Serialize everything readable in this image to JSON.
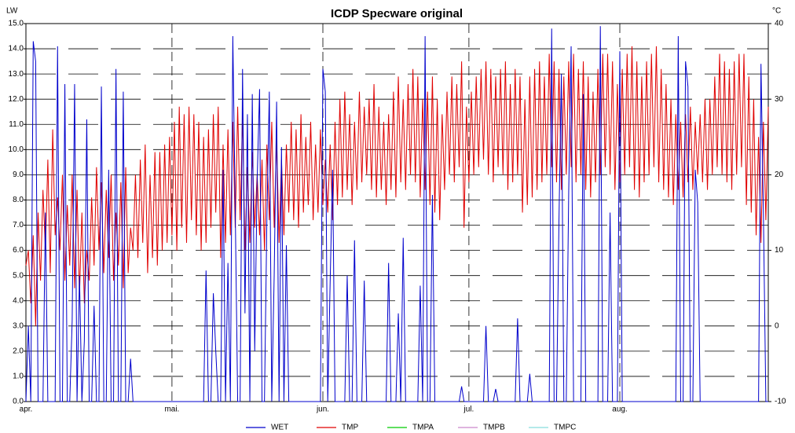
{
  "chart_data": {
    "type": "line",
    "title": "ICDP Specware original",
    "ylabel": "LW",
    "y2label": "°C",
    "categories": [
      "apr.",
      null,
      null,
      null,
      null,
      null,
      null,
      null,
      null,
      null,
      null,
      null,
      null,
      null,
      null,
      null,
      null,
      null,
      null,
      null,
      null,
      null,
      null,
      null,
      null,
      null,
      null,
      null,
      null,
      null,
      null,
      null,
      null,
      null,
      null,
      null,
      null,
      null,
      null,
      null,
      null,
      null,
      null,
      null,
      null,
      null,
      null,
      null,
      null,
      null,
      null,
      null,
      null,
      null,
      null,
      null,
      null,
      null,
      null,
      null,
      "mai.",
      null,
      null,
      null,
      null,
      null,
      null,
      null,
      null,
      null,
      null,
      null,
      null,
      null,
      null,
      null,
      null,
      null,
      null,
      null,
      null,
      null,
      null,
      null,
      null,
      null,
      null,
      null,
      null,
      null,
      null,
      null,
      null,
      null,
      null,
      null,
      null,
      null,
      null,
      null,
      null,
      null,
      null,
      null,
      null,
      null,
      null,
      null,
      null,
      null,
      null,
      null,
      null,
      null,
      null,
      null,
      null,
      null,
      null,
      null,
      null,
      null,
      "jun.",
      null,
      null,
      null,
      null,
      null,
      null,
      null,
      null,
      null,
      null,
      null,
      null,
      null,
      null,
      null,
      null,
      null,
      null,
      null,
      null,
      null,
      null,
      null,
      null,
      null,
      null,
      null,
      null,
      null,
      null,
      null,
      null,
      null,
      null,
      null,
      null,
      null,
      null,
      null,
      null,
      null,
      null,
      null,
      null,
      null,
      null,
      null,
      null,
      null,
      null,
      null,
      null,
      null,
      null,
      null,
      null,
      null,
      null,
      null,
      "jul.",
      null,
      null,
      null,
      null,
      null,
      null,
      null,
      null,
      null,
      null,
      null,
      null,
      null,
      null,
      null,
      null,
      null,
      null,
      null,
      null,
      null,
      null,
      null,
      null,
      null,
      null,
      null,
      null,
      null,
      null,
      null,
      null,
      null,
      null,
      null,
      null,
      null,
      null,
      null,
      null,
      null,
      null,
      null,
      null,
      null,
      null,
      null,
      null,
      null,
      null,
      null,
      null,
      null,
      null,
      null,
      null,
      null,
      null,
      null,
      null,
      null,
      "aug.",
      null,
      null,
      null,
      null,
      null,
      null,
      null,
      null,
      null,
      null,
      null,
      null,
      null,
      null,
      null,
      null,
      null,
      null,
      null,
      null,
      null,
      null,
      null,
      null,
      null,
      null,
      null,
      null,
      null,
      null,
      null,
      null,
      null,
      null,
      null,
      null,
      null,
      null,
      null,
      null,
      null,
      null,
      null,
      null,
      null,
      null,
      null,
      null,
      null,
      null,
      null,
      null,
      null,
      null,
      null,
      null,
      null,
      null,
      null,
      null,
      null
    ],
    "series": [
      {
        "name": "WET",
        "color": "#0000cc",
        "values": [
          0,
          3,
          0,
          14.3,
          13.5,
          0,
          0,
          0,
          7.5,
          0,
          0,
          0,
          0,
          14.1,
          0,
          0,
          12.6,
          0,
          0,
          3.2,
          12.6,
          0,
          5,
          0,
          2.4,
          11.2,
          0,
          0,
          3.8,
          0,
          0,
          12.5,
          0,
          0,
          9.2,
          0,
          0,
          13.2,
          0,
          0,
          12.3,
          0,
          0,
          1.7,
          0,
          0,
          0,
          0,
          0,
          0,
          0,
          0,
          0,
          0,
          0,
          0,
          0,
          0,
          0,
          0,
          0,
          0,
          0,
          0,
          0,
          0,
          0,
          0,
          0,
          0,
          0,
          0,
          0,
          0,
          5.2,
          0,
          0,
          4.3,
          2,
          0,
          0,
          9.2,
          0,
          5.5,
          0,
          14.5,
          7.6,
          0,
          0,
          13.2,
          3.5,
          11.4,
          0,
          12.2,
          2,
          8.8,
          12.4,
          0,
          0,
          7.3,
          12.3,
          0,
          5,
          11.9,
          0,
          10.1,
          0,
          6.2,
          0,
          0,
          0,
          0,
          0,
          0,
          0,
          0,
          0,
          0,
          0,
          0,
          0,
          0,
          13.2,
          12.3,
          0,
          4.8,
          9.2,
          0,
          0,
          0,
          0,
          0,
          5,
          0,
          0,
          6.4,
          0,
          0,
          0,
          4.8,
          0,
          0,
          0,
          0,
          0,
          0,
          0,
          0,
          0,
          5.5,
          0,
          0,
          0,
          3.5,
          0,
          6.5,
          0,
          0,
          0,
          0,
          0,
          0,
          4.6,
          0,
          14.5,
          0,
          0,
          8.2,
          0,
          0,
          0,
          0,
          0,
          0,
          0,
          0,
          0,
          0,
          0,
          0.6,
          0,
          0,
          0,
          0,
          0,
          0,
          0,
          0,
          0,
          3,
          0,
          0,
          0,
          0.5,
          0,
          0,
          0,
          0,
          0,
          0,
          0,
          0,
          3.3,
          0,
          0,
          0,
          0,
          1.1,
          0,
          0,
          0,
          0,
          0,
          0,
          0,
          0,
          14.8,
          0,
          0,
          7.2,
          13,
          0,
          0,
          8.3,
          14.1,
          0,
          0,
          0,
          0,
          12.2,
          0,
          0,
          0,
          0,
          0,
          0,
          14.9,
          0,
          0,
          0,
          7.5,
          0,
          0,
          0,
          13.9,
          0,
          0,
          0,
          0,
          0,
          0,
          0,
          0,
          0,
          0,
          0,
          0,
          0,
          0,
          0,
          0,
          0,
          0,
          0,
          0,
          0,
          0,
          0,
          14.5,
          0,
          0,
          13.5,
          12.5,
          0,
          0,
          9.2,
          7.9,
          0,
          0,
          0,
          0,
          0,
          0,
          0,
          0,
          0,
          0,
          0,
          0,
          0,
          0,
          0,
          0,
          0,
          0,
          0,
          0,
          0,
          0,
          0,
          0,
          0,
          13.4,
          7.4,
          0,
          0
        ]
      },
      {
        "name": "TMP",
        "color": "#e00000",
        "axis": "y2",
        "values": [
          8,
          10,
          3,
          12,
          0,
          15,
          6,
          18,
          10,
          22,
          7,
          26,
          12,
          17,
          10,
          20,
          6,
          16,
          8,
          20,
          5,
          18,
          4,
          15,
          3,
          10,
          6,
          17,
          8,
          21,
          10,
          19,
          7,
          18,
          9,
          20,
          6,
          15,
          8,
          19,
          5,
          21,
          7,
          13,
          10,
          20,
          9,
          22,
          11,
          24,
          7,
          20,
          9,
          23,
          8,
          23,
          10,
          24,
          11,
          25,
          12,
          27,
          10,
          29,
          13,
          28,
          11,
          29,
          14,
          28,
          12,
          27,
          10,
          25,
          11,
          26,
          13,
          28,
          15,
          29,
          9,
          24,
          11,
          26,
          12,
          27,
          13,
          29,
          14,
          28,
          10,
          21,
          11,
          23,
          13,
          20,
          12,
          22,
          10,
          24,
          14,
          27,
          13,
          25,
          11,
          22,
          12,
          24,
          15,
          27,
          14,
          26,
          13,
          28,
          15,
          25,
          16,
          27,
          14,
          24,
          15,
          26,
          16,
          22,
          15,
          24,
          14,
          27,
          16,
          30,
          17,
          31,
          18,
          28,
          16,
          27,
          18,
          31,
          19,
          29,
          20,
          30,
          18,
          32,
          17,
          29,
          18,
          27,
          16,
          28,
          18,
          31,
          17,
          33,
          19,
          30,
          18,
          32,
          20,
          34,
          19,
          33,
          17,
          30,
          18,
          31,
          16,
          33,
          15,
          30,
          14,
          28,
          18,
          31,
          20,
          33,
          19,
          32,
          21,
          35,
          13,
          29,
          19,
          31,
          20,
          33,
          21,
          34,
          22,
          35,
          20,
          34,
          19,
          33,
          21,
          34,
          20,
          35,
          18,
          32,
          19,
          34,
          20,
          33,
          15,
          30,
          16,
          33,
          17,
          34,
          18,
          35,
          19,
          33,
          20,
          36,
          21,
          35,
          19,
          34,
          18,
          33,
          20,
          35,
          21,
          36,
          19,
          34,
          20,
          35,
          18,
          33,
          17,
          31,
          19,
          34,
          20,
          36,
          21,
          36,
          20,
          35,
          18,
          32,
          19,
          34,
          20,
          36,
          21,
          37,
          18,
          35,
          17,
          33,
          19,
          35,
          20,
          36,
          21,
          37,
          19,
          34,
          18,
          32,
          17,
          30,
          16,
          28,
          18,
          27,
          17,
          28,
          19,
          29,
          18,
          27,
          20,
          28,
          19,
          30,
          18,
          30,
          20,
          33,
          21,
          36,
          20,
          35,
          19,
          34,
          18,
          35,
          20,
          36,
          21,
          36,
          16,
          33,
          15,
          30,
          12,
          25,
          11,
          27,
          14,
          29
        ]
      },
      {
        "name": "TMPA",
        "color": "#00cc00"
      },
      {
        "name": "TMPB",
        "color": "#cc88cc"
      },
      {
        "name": "TMPC",
        "color": "#88dddd"
      }
    ],
    "ylim": [
      0,
      15
    ],
    "yticks": [
      {
        "value": 0,
        "label": "0.0"
      },
      {
        "value": 1,
        "label": "1.0"
      },
      {
        "value": 2,
        "label": "2.0"
      },
      {
        "value": 3,
        "label": "3.0"
      },
      {
        "value": 4,
        "label": "4.0"
      },
      {
        "value": 5,
        "label": "5.0"
      },
      {
        "value": 6,
        "label": "6.0"
      },
      {
        "value": 7,
        "label": "7.0"
      },
      {
        "value": 8,
        "label": "8.0"
      },
      {
        "value": 9,
        "label": "9.0"
      },
      {
        "value": 10,
        "label": "10.0"
      },
      {
        "value": 11,
        "label": "11.0"
      },
      {
        "value": 12,
        "label": "12.0"
      },
      {
        "value": 13,
        "label": "13.0"
      },
      {
        "value": 14,
        "label": "14.0"
      },
      {
        "value": 15,
        "label": "15.0"
      }
    ],
    "y2lim": [
      -10,
      40
    ],
    "y2ticks": [
      -10,
      0,
      10,
      20,
      30,
      40
    ],
    "grid": true
  }
}
